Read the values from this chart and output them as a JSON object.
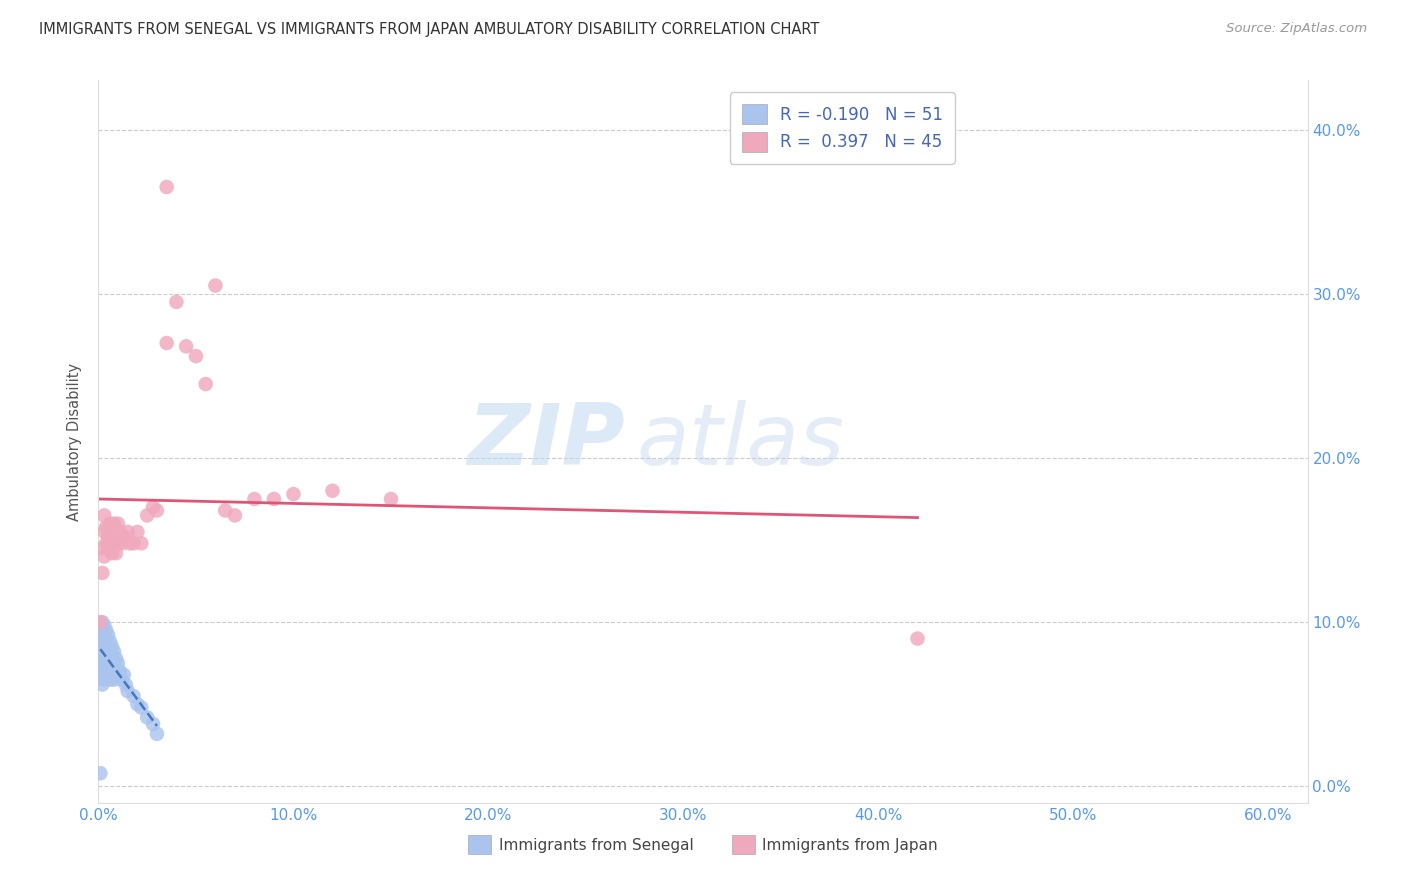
{
  "title": "IMMIGRANTS FROM SENEGAL VS IMMIGRANTS FROM JAPAN AMBULATORY DISABILITY CORRELATION CHART",
  "source": "Source: ZipAtlas.com",
  "ylabel": "Ambulatory Disability",
  "xlim": [
    0.0,
    0.62
  ],
  "ylim": [
    -0.01,
    0.43
  ],
  "xticks": [
    0.0,
    0.1,
    0.2,
    0.3,
    0.4,
    0.5,
    0.6
  ],
  "yticks": [
    0.0,
    0.1,
    0.2,
    0.3,
    0.4
  ],
  "ytick_labels": [
    "0.0%",
    "10.0%",
    "20.0%",
    "30.0%",
    "40.0%"
  ],
  "xtick_labels": [
    "0.0%",
    "10.0%",
    "20.0%",
    "30.0%",
    "40.0%",
    "50.0%",
    "60.0%"
  ],
  "legend_r_senegal": "-0.190",
  "legend_n_senegal": "51",
  "legend_r_japan": "0.397",
  "legend_n_japan": "45",
  "senegal_color": "#aac4ee",
  "japan_color": "#f0a8bc",
  "trend_senegal_color": "#4477bb",
  "trend_japan_color": "#e05575",
  "grid_color": "#cccccc",
  "bg_color": "#ffffff",
  "title_color": "#333333",
  "axis_label_color": "#5599ee",
  "senegal_x": [
    0.001,
    0.001,
    0.001,
    0.001,
    0.002,
    0.002,
    0.002,
    0.002,
    0.002,
    0.003,
    0.003,
    0.003,
    0.003,
    0.003,
    0.003,
    0.003,
    0.004,
    0.004,
    0.004,
    0.004,
    0.004,
    0.005,
    0.005,
    0.005,
    0.005,
    0.006,
    0.006,
    0.006,
    0.006,
    0.007,
    0.007,
    0.007,
    0.008,
    0.008,
    0.008,
    0.009,
    0.009,
    0.01,
    0.011,
    0.012,
    0.013,
    0.014,
    0.015,
    0.018,
    0.02,
    0.022,
    0.025,
    0.028,
    0.03,
    0.002,
    0.001
  ],
  "senegal_y": [
    0.095,
    0.088,
    0.082,
    0.075,
    0.1,
    0.095,
    0.088,
    0.082,
    0.07,
    0.098,
    0.092,
    0.088,
    0.082,
    0.078,
    0.072,
    0.065,
    0.095,
    0.088,
    0.082,
    0.076,
    0.07,
    0.092,
    0.085,
    0.078,
    0.068,
    0.088,
    0.082,
    0.075,
    0.065,
    0.085,
    0.078,
    0.068,
    0.082,
    0.075,
    0.065,
    0.078,
    0.068,
    0.075,
    0.07,
    0.065,
    0.068,
    0.062,
    0.058,
    0.055,
    0.05,
    0.048,
    0.042,
    0.038,
    0.032,
    0.062,
    0.008
  ],
  "japan_x": [
    0.001,
    0.002,
    0.002,
    0.003,
    0.003,
    0.003,
    0.004,
    0.004,
    0.005,
    0.005,
    0.006,
    0.006,
    0.007,
    0.007,
    0.008,
    0.008,
    0.009,
    0.01,
    0.01,
    0.011,
    0.012,
    0.013,
    0.015,
    0.016,
    0.018,
    0.02,
    0.022,
    0.025,
    0.028,
    0.03,
    0.035,
    0.04,
    0.045,
    0.05,
    0.055,
    0.06,
    0.065,
    0.07,
    0.08,
    0.09,
    0.1,
    0.12,
    0.15,
    0.42,
    0.035
  ],
  "japan_y": [
    0.1,
    0.13,
    0.145,
    0.14,
    0.155,
    0.165,
    0.148,
    0.158,
    0.145,
    0.152,
    0.148,
    0.16,
    0.142,
    0.155,
    0.148,
    0.16,
    0.142,
    0.148,
    0.16,
    0.155,
    0.148,
    0.152,
    0.155,
    0.148,
    0.148,
    0.155,
    0.148,
    0.165,
    0.17,
    0.168,
    0.27,
    0.295,
    0.268,
    0.262,
    0.245,
    0.305,
    0.168,
    0.165,
    0.175,
    0.175,
    0.178,
    0.18,
    0.175,
    0.09,
    0.365
  ]
}
